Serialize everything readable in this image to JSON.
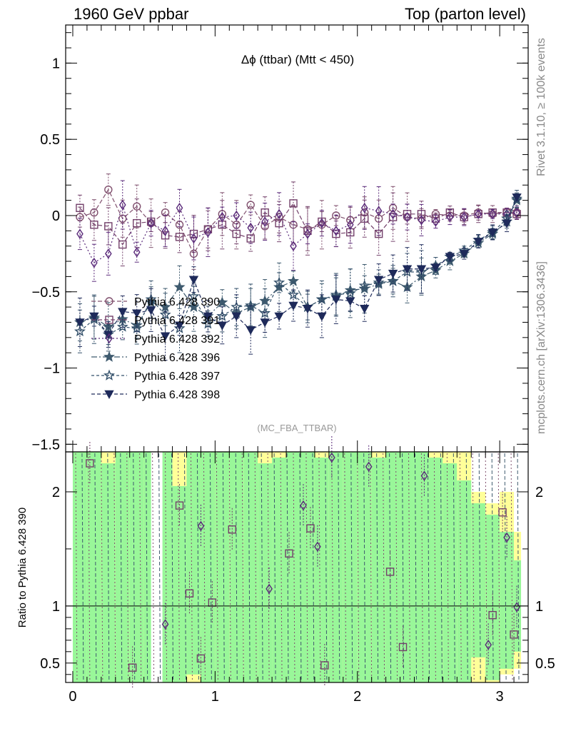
{
  "header": {
    "left": "1960 GeV ppbar",
    "right": "Top (parton level)"
  },
  "side_labels": {
    "rivet": "Rivet 3.1.10, ≥ 100k events",
    "mcplots": "mcplots.cern.ch [arXiv:1306.3436]"
  },
  "colors": {
    "band_green": "#99f799",
    "band_yellow": "#ffff99",
    "series": [
      "#80506e",
      "#73406a",
      "#5a2a7a",
      "#3e5a6e",
      "#33506a",
      "#1e2a5a"
    ]
  },
  "chart_data": [
    {
      "type": "line",
      "title": "Δϕ (ttbar) (Mtt < 450)",
      "analysis_tag": "(MC_FBA_TTBAR)",
      "xlim": [
        -0.05,
        3.2
      ],
      "ylim": [
        -1.55,
        1.25
      ],
      "yticks": [
        -1.5,
        -1,
        -0.5,
        0,
        0.5,
        1
      ],
      "ytick_labels": [
        "−1.5",
        "−1",
        "−0.5",
        "0",
        "0.5",
        "1"
      ],
      "legend_position": "center-left",
      "series": [
        {
          "name": "Pythia 6.428 390",
          "marker": "circle-open",
          "dash": "6,3",
          "x": [
            0.05,
            0.15,
            0.25,
            0.35,
            0.45,
            0.55,
            0.65,
            0.75,
            0.85,
            0.95,
            1.05,
            1.15,
            1.25,
            1.35,
            1.45,
            1.55,
            1.65,
            1.75,
            1.85,
            1.95,
            2.05,
            2.15,
            2.25,
            2.35,
            2.45,
            2.55,
            2.65,
            2.75,
            2.85,
            2.95,
            3.05,
            3.12
          ],
          "y": [
            -0.01,
            0.02,
            0.17,
            -0.02,
            0.06,
            -0.05,
            0.02,
            -0.06,
            -0.25,
            -0.09,
            0.01,
            -0.06,
            0.07,
            -0.07,
            -0.01,
            -0.06,
            -0.09,
            -0.06,
            0.0,
            -0.03,
            0.02,
            -0.02,
            0.05,
            -0.01,
            -0.02,
            0.01,
            0.0,
            0.0,
            0.02,
            0.01,
            0.02,
            0.02
          ]
        },
        {
          "name": "Pythia 6.428 391",
          "marker": "square-open",
          "dash": "6,3",
          "x": [
            0.05,
            0.15,
            0.25,
            0.35,
            0.45,
            0.55,
            0.65,
            0.75,
            0.85,
            0.95,
            1.05,
            1.15,
            1.25,
            1.35,
            1.45,
            1.55,
            1.65,
            1.75,
            1.85,
            1.95,
            2.05,
            2.15,
            2.25,
            2.35,
            2.45,
            2.55,
            2.65,
            2.75,
            2.85,
            2.95,
            3.05,
            3.12
          ],
          "y": [
            0.05,
            -0.06,
            -0.07,
            -0.19,
            -0.05,
            -0.04,
            -0.13,
            -0.14,
            -0.12,
            -0.09,
            -0.06,
            -0.12,
            -0.15,
            0.02,
            -0.05,
            0.08,
            -0.1,
            -0.04,
            -0.12,
            -0.11,
            -0.02,
            -0.12,
            -0.01,
            0.01,
            0.01,
            -0.02,
            0.02,
            -0.01,
            0.01,
            0.02,
            0.02,
            0.01
          ]
        },
        {
          "name": "Pythia 6.428 392",
          "marker": "diamond-open",
          "dash": "2,3",
          "x": [
            0.05,
            0.15,
            0.25,
            0.35,
            0.45,
            0.55,
            0.65,
            0.75,
            0.85,
            0.95,
            1.05,
            1.15,
            1.25,
            1.35,
            1.45,
            1.55,
            1.65,
            1.75,
            1.85,
            1.95,
            2.05,
            2.15,
            2.25,
            2.35,
            2.45,
            2.55,
            2.65,
            2.75,
            2.85,
            2.95,
            3.05,
            3.12
          ],
          "y": [
            -0.12,
            -0.31,
            -0.25,
            0.07,
            -0.24,
            -0.05,
            -0.1,
            0.05,
            -0.15,
            -0.11,
            -0.01,
            0.0,
            -0.08,
            -0.04,
            0.01,
            -0.2,
            -0.12,
            -0.05,
            -0.1,
            -0.06,
            0.05,
            0.03,
            0.01,
            -0.01,
            -0.03,
            -0.04,
            -0.01,
            -0.01,
            0.01,
            0.01,
            0.01,
            0.02
          ]
        },
        {
          "name": "Pythia 6.428 396",
          "marker": "star-filled",
          "dash": "8,3,2,3",
          "x": [
            0.05,
            0.15,
            0.25,
            0.35,
            0.45,
            0.55,
            0.65,
            0.75,
            0.85,
            0.95,
            1.05,
            1.15,
            1.25,
            1.35,
            1.45,
            1.55,
            1.65,
            1.75,
            1.85,
            1.95,
            2.05,
            2.15,
            2.25,
            2.35,
            2.45,
            2.55,
            2.65,
            2.75,
            2.85,
            2.95,
            3.05,
            3.12
          ],
          "y": [
            -0.7,
            -0.67,
            -0.73,
            -0.68,
            -0.72,
            -0.57,
            -0.6,
            -0.47,
            -0.6,
            -0.66,
            -0.57,
            -0.64,
            -0.6,
            -0.56,
            -0.47,
            -0.43,
            -0.6,
            -0.55,
            -0.53,
            -0.49,
            -0.48,
            -0.45,
            -0.43,
            -0.47,
            -0.4,
            -0.36,
            -0.3,
            -0.25,
            -0.18,
            -0.12,
            -0.04,
            0.1
          ]
        },
        {
          "name": "Pythia 6.428 397",
          "marker": "star-open",
          "dash": "4,3",
          "x": [
            0.05,
            0.15,
            0.25,
            0.35,
            0.45,
            0.55,
            0.65,
            0.75,
            0.85,
            0.95,
            1.05,
            1.15,
            1.25,
            1.35,
            1.45,
            1.55,
            1.65,
            1.75,
            1.85,
            1.95,
            2.05,
            2.15,
            2.25,
            2.35,
            2.45,
            2.55,
            2.65,
            2.75,
            2.85,
            2.95,
            3.05,
            3.12
          ],
          "y": [
            -0.76,
            -0.68,
            -0.78,
            -0.73,
            -0.74,
            -0.55,
            -0.65,
            -0.74,
            -0.53,
            -0.71,
            -0.66,
            -0.6,
            -0.59,
            -0.64,
            -0.44,
            -0.52,
            -0.6,
            -0.55,
            -0.52,
            -0.51,
            -0.46,
            -0.44,
            -0.43,
            -0.37,
            -0.37,
            -0.33,
            -0.27,
            -0.23,
            -0.16,
            -0.11,
            -0.02,
            0.11
          ]
        },
        {
          "name": "Pythia 6.428 398",
          "marker": "triangle-down-filled",
          "dash": "5,3",
          "x": [
            0.05,
            0.15,
            0.25,
            0.35,
            0.45,
            0.55,
            0.65,
            0.75,
            0.85,
            0.95,
            1.05,
            1.15,
            1.25,
            1.35,
            1.45,
            1.55,
            1.65,
            1.75,
            1.85,
            1.95,
            2.05,
            2.15,
            2.25,
            2.35,
            2.45,
            2.55,
            2.65,
            2.75,
            2.85,
            2.95,
            3.05,
            3.12
          ],
          "y": [
            -0.7,
            -0.66,
            -0.78,
            -0.63,
            -0.64,
            -0.62,
            -0.79,
            -0.72,
            -0.42,
            -0.66,
            -0.72,
            -0.66,
            -0.75,
            -0.7,
            -0.66,
            -0.59,
            -0.61,
            -0.66,
            -0.55,
            -0.56,
            -0.61,
            -0.42,
            -0.38,
            -0.35,
            -0.35,
            -0.34,
            -0.27,
            -0.25,
            -0.17,
            -0.11,
            -0.05,
            0.12
          ]
        }
      ]
    },
    {
      "type": "line",
      "ylabel": "Ratio to Pythia 6.428 390",
      "xlim": [
        -0.05,
        3.2
      ],
      "ylim": [
        0.33,
        2.35
      ],
      "yticks": [
        0.5,
        1,
        2
      ],
      "ytick_labels": [
        "0.5",
        "1",
        "2"
      ],
      "xticks": [
        0,
        1,
        2,
        3
      ],
      "xtick_labels": [
        "0",
        "1",
        "2",
        "3"
      ],
      "reference_line": 1,
      "band_x_edges": [
        0.0,
        0.1,
        0.2,
        0.3,
        0.4,
        0.5,
        0.6,
        0.7,
        0.8,
        0.9,
        1.0,
        1.1,
        1.2,
        1.3,
        1.4,
        1.5,
        1.6,
        1.7,
        1.8,
        1.9,
        2.0,
        2.1,
        2.2,
        2.3,
        2.4,
        2.5,
        2.6,
        2.7,
        2.8,
        2.9,
        3.0,
        3.1,
        3.15
      ],
      "band_green": {
        "low": [
          0.33,
          0.33,
          0.33,
          0.33,
          0.33,
          0.33,
          0.33,
          0.33,
          0.4,
          0.33,
          0.33,
          0.33,
          0.33,
          0.33,
          0.33,
          0.33,
          0.33,
          0.33,
          0.33,
          0.33,
          0.33,
          0.33,
          0.33,
          0.33,
          0.33,
          0.33,
          0.33,
          0.33,
          0.55,
          0.35,
          0.45,
          0.6
        ],
        "high": [
          2.35,
          2.35,
          2.25,
          2.35,
          2.35,
          2.35,
          2.35,
          2.05,
          2.35,
          2.35,
          2.35,
          2.35,
          2.35,
          2.25,
          2.3,
          2.35,
          2.35,
          2.3,
          2.35,
          2.35,
          2.35,
          2.3,
          2.35,
          2.35,
          2.35,
          2.3,
          2.25,
          2.1,
          1.9,
          1.8,
          1.65,
          1.4
        ]
      },
      "band_yellow": {
        "low": [
          0.33,
          0.33,
          0.33,
          0.33,
          0.33,
          0.33,
          0.33,
          0.33,
          0.33,
          0.33,
          0.33,
          0.33,
          0.33,
          0.33,
          0.33,
          0.33,
          0.33,
          0.33,
          0.33,
          0.33,
          0.33,
          0.33,
          0.33,
          0.33,
          0.33,
          0.33,
          0.33,
          0.33,
          0.33,
          0.33,
          0.4,
          0.45
        ],
        "high": [
          2.35,
          2.35,
          2.35,
          2.35,
          2.35,
          2.35,
          2.35,
          2.35,
          2.35,
          2.35,
          2.35,
          2.35,
          2.35,
          2.35,
          2.35,
          2.35,
          2.35,
          2.35,
          2.35,
          2.35,
          2.35,
          2.35,
          2.35,
          2.35,
          2.35,
          2.35,
          2.35,
          2.35,
          2.0,
          1.9,
          2.0,
          1.65
        ]
      },
      "band_gaps": [
        [
          0.55,
          0.63
        ]
      ],
      "series": [
        {
          "name": "Pythia 6.428 391",
          "marker": "square-open",
          "dash": "6,3",
          "x": [
            0.12,
            0.42,
            0.75,
            0.82,
            0.9,
            0.98,
            1.12,
            1.52,
            1.67,
            1.77,
            2.23,
            2.32,
            2.95,
            3.02,
            3.1
          ],
          "y": [
            2.25,
            0.46,
            1.88,
            1.11,
            0.54,
            1.03,
            1.67,
            1.46,
            1.68,
            0.48,
            1.3,
            0.64,
            0.92,
            1.82,
            0.75
          ]
        },
        {
          "name": "Pythia 6.428 392",
          "marker": "diamond-open",
          "dash": "2,3",
          "x": [
            0.65,
            0.9,
            1.38,
            1.62,
            1.72,
            1.82,
            2.08,
            2.47,
            2.92,
            3.05,
            3.12
          ],
          "y": [
            0.84,
            1.7,
            1.15,
            1.88,
            1.52,
            2.3,
            2.22,
            2.14,
            0.66,
            1.6,
            0.99
          ]
        }
      ]
    }
  ]
}
